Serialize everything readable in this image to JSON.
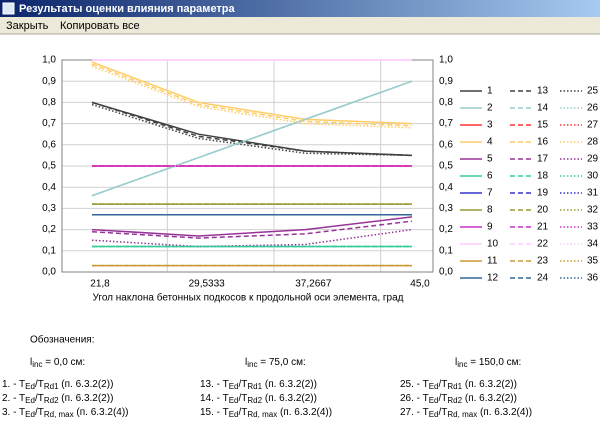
{
  "window": {
    "title": "Результаты оценки влияния параметра",
    "menu": [
      "Закрыть",
      "Копировать все"
    ]
  },
  "chart_data": {
    "type": "line",
    "x_label": "Угол наклона бетонных подкосов к продольной оси элемента, град",
    "categories": [
      "21,8",
      "29,5333",
      "37,2667",
      "45,0"
    ],
    "ylim": [
      0,
      1
    ],
    "yticks": [
      {
        "value": 0,
        "label": "0,0"
      },
      {
        "value": 0.1,
        "label": "0,1"
      },
      {
        "value": 0.2,
        "label": "0,2"
      },
      {
        "value": 0.3,
        "label": "0,3"
      },
      {
        "value": 0.4,
        "label": "0,4"
      },
      {
        "value": 0.5,
        "label": "0,5"
      },
      {
        "value": 0.6,
        "label": "0,6"
      },
      {
        "value": 0.7,
        "label": "0,7"
      },
      {
        "value": 0.8,
        "label": "0,8"
      },
      {
        "value": 0.9,
        "label": "0,9"
      },
      {
        "value": 1,
        "label": "1,0"
      }
    ],
    "grid": true,
    "series": [
      {
        "name": "1",
        "color": "#404040",
        "dash": "solid",
        "values": [
          0.8,
          0.65,
          0.57,
          0.55
        ]
      },
      {
        "name": "2",
        "color": "#99cccc",
        "dash": "solid",
        "values": [
          0.36,
          0.54,
          0.72,
          0.9
        ]
      },
      {
        "name": "3",
        "color": "#ff3333",
        "dash": "solid",
        "values": [
          0.5,
          0.5,
          0.5,
          0.5
        ]
      },
      {
        "name": "4",
        "color": "#ffcc66",
        "dash": "solid",
        "values": [
          0.99,
          0.8,
          0.72,
          0.7
        ]
      },
      {
        "name": "5",
        "color": "#993399",
        "dash": "solid",
        "values": [
          0.2,
          0.17,
          0.2,
          0.26
        ]
      },
      {
        "name": "6",
        "color": "#33cc99",
        "dash": "solid",
        "values": [
          0.12,
          0.12,
          0.12,
          0.12
        ]
      },
      {
        "name": "7",
        "color": "#3333cc",
        "dash": "solid",
        "values": [
          0.27,
          0.27,
          0.27,
          0.27
        ]
      },
      {
        "name": "8",
        "color": "#999933",
        "dash": "solid",
        "values": [
          0.32,
          0.32,
          0.32,
          0.32
        ]
      },
      {
        "name": "9",
        "color": "#cc33cc",
        "dash": "solid",
        "values": [
          0.5,
          0.5,
          0.5,
          0.5
        ]
      },
      {
        "name": "10",
        "color": "#ffccff",
        "dash": "solid",
        "values": [
          1,
          1,
          1,
          1
        ]
      },
      {
        "name": "11",
        "color": "#cc9933",
        "dash": "solid",
        "values": [
          0.03,
          0.03,
          0.03,
          0.03
        ]
      },
      {
        "name": "12",
        "color": "#336699",
        "dash": "solid",
        "values": [
          0.27,
          0.27,
          0.27,
          0.27
        ]
      },
      {
        "name": "13",
        "color": "#404040",
        "dash": "dashed",
        "values": [
          0.8,
          0.64,
          0.57,
          0.55
        ]
      },
      {
        "name": "14",
        "color": "#99cccc",
        "dash": "dashed",
        "values": [
          0.36,
          0.54,
          0.72,
          0.9
        ]
      },
      {
        "name": "15",
        "color": "#ff3333",
        "dash": "dashed",
        "values": [
          0.5,
          0.5,
          0.5,
          0.5
        ]
      },
      {
        "name": "16",
        "color": "#ffcc66",
        "dash": "dashed",
        "values": [
          0.98,
          0.79,
          0.71,
          0.69
        ]
      },
      {
        "name": "17",
        "color": "#993399",
        "dash": "dashed",
        "values": [
          0.19,
          0.16,
          0.18,
          0.24
        ]
      },
      {
        "name": "18",
        "color": "#33cc99",
        "dash": "dashed",
        "values": [
          0.12,
          0.12,
          0.12,
          0.12
        ]
      },
      {
        "name": "19",
        "color": "#3333cc",
        "dash": "dashed",
        "values": [
          0.27,
          0.27,
          0.27,
          0.27
        ]
      },
      {
        "name": "20",
        "color": "#999933",
        "dash": "dashed",
        "values": [
          0.32,
          0.32,
          0.32,
          0.32
        ]
      },
      {
        "name": "21",
        "color": "#cc33cc",
        "dash": "dashed",
        "values": [
          0.5,
          0.5,
          0.5,
          0.5
        ]
      },
      {
        "name": "22",
        "color": "#ffccff",
        "dash": "dashed",
        "values": [
          1,
          1,
          1,
          1
        ]
      },
      {
        "name": "23",
        "color": "#cc9933",
        "dash": "dashed",
        "values": [
          0.03,
          0.03,
          0.03,
          0.03
        ]
      },
      {
        "name": "24",
        "color": "#336699",
        "dash": "dashed",
        "values": [
          0.27,
          0.27,
          0.27,
          0.27
        ]
      },
      {
        "name": "25",
        "color": "#404040",
        "dash": "dotted",
        "values": [
          0.79,
          0.63,
          0.56,
          0.55
        ]
      },
      {
        "name": "26",
        "color": "#99cccc",
        "dash": "dotted",
        "values": [
          0.36,
          0.54,
          0.72,
          0.9
        ]
      },
      {
        "name": "27",
        "color": "#ff3333",
        "dash": "dotted",
        "values": [
          0.5,
          0.5,
          0.5,
          0.5
        ]
      },
      {
        "name": "28",
        "color": "#ffcc66",
        "dash": "dotted",
        "values": [
          0.97,
          0.78,
          0.7,
          0.68
        ]
      },
      {
        "name": "29",
        "color": "#993399",
        "dash": "dotted",
        "values": [
          0.15,
          0.12,
          0.13,
          0.2
        ]
      },
      {
        "name": "30",
        "color": "#33cc99",
        "dash": "dotted",
        "values": [
          0.12,
          0.12,
          0.12,
          0.12
        ]
      },
      {
        "name": "31",
        "color": "#3333cc",
        "dash": "dotted",
        "values": [
          0.27,
          0.27,
          0.27,
          0.27
        ]
      },
      {
        "name": "32",
        "color": "#999933",
        "dash": "dotted",
        "values": [
          0.32,
          0.32,
          0.32,
          0.32
        ]
      },
      {
        "name": "33",
        "color": "#cc33cc",
        "dash": "dotted",
        "values": [
          0.5,
          0.5,
          0.5,
          0.5
        ]
      },
      {
        "name": "34",
        "color": "#ffccff",
        "dash": "dotted",
        "values": [
          1,
          1,
          1,
          1
        ]
      },
      {
        "name": "35",
        "color": "#cc9933",
        "dash": "dotted",
        "values": [
          0.03,
          0.03,
          0.03,
          0.03
        ]
      },
      {
        "name": "36",
        "color": "#336699",
        "dash": "dotted",
        "values": [
          0.27,
          0.27,
          0.27,
          0.27
        ]
      }
    ]
  },
  "notes": {
    "heading": "Обозначения:",
    "groups": [
      [
        "l",
        "inc",
        " = 0,0 см:"
      ],
      [
        "l",
        "inc",
        " = 75,0 см:"
      ],
      [
        "l",
        "inc",
        " = 150,0 см:"
      ]
    ],
    "items": [
      [
        [
          "1. - T",
          "Ed",
          "/T",
          "Rd1",
          " (п. 6.3.2(2))"
        ],
        [
          "2. - T",
          "Ed",
          "/T",
          "Rd2",
          " (п. 6.3.2(2))"
        ],
        [
          "3. - T",
          "Ed",
          "/T",
          "Rd, max",
          " (п. 6.3.2(4))"
        ]
      ],
      [
        [
          "13. - T",
          "Ed",
          "/T",
          "Rd1",
          " (п. 6.3.2(2))"
        ],
        [
          "14. - T",
          "Ed",
          "/T",
          "Rd2",
          " (п. 6.3.2(2))"
        ],
        [
          "15. - T",
          "Ed",
          "/T",
          "Rd, max",
          " (п. 6.3.2(4))"
        ]
      ],
      [
        [
          "25. - T",
          "Ed",
          "/T",
          "Rd1",
          " (п. 6.3.2(2))"
        ],
        [
          "26. - T",
          "Ed",
          "/T",
          "Rd2",
          " (п. 6.3.2(2))"
        ],
        [
          "27. - T",
          "Ed",
          "/T",
          "Rd, max",
          " (п. 6.3.2(4))"
        ]
      ]
    ]
  }
}
